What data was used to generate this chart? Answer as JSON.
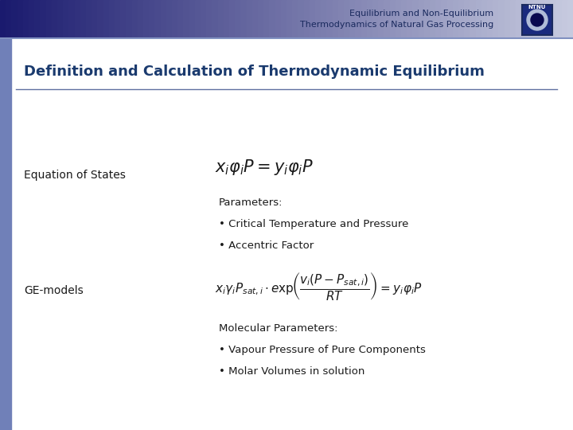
{
  "header_text_line1": "Equilibrium and Non-Equilibrium",
  "header_text_line2": "Thermodynamics of Natural Gas Processing",
  "header_bg_left": "#1a1a6e",
  "header_bg_right": "#c8cce0",
  "header_text_color": "#1a3a6e",
  "slide_bg": "#ffffff",
  "title": "Definition and Calculation of Thermodynamic Equilibrium",
  "title_color": "#1a3a6e",
  "title_fontsize": 13,
  "left_label1": "Equation of States",
  "left_label2": "GE-models",
  "params_label": "Parameters:",
  "bullet1": "• Critical Temperature and Pressure",
  "bullet2": "• Accentric Factor",
  "mol_params_label": "Molecular Parameters:",
  "bullet3": "• Vapour Pressure of Pure Components",
  "bullet4": "• Molar Volumes in solution",
  "text_color": "#1a1a1a",
  "left_bar_color": "#4a5a9e",
  "header_line_color": "#6070b0",
  "body_bg": "#f0f2f8"
}
